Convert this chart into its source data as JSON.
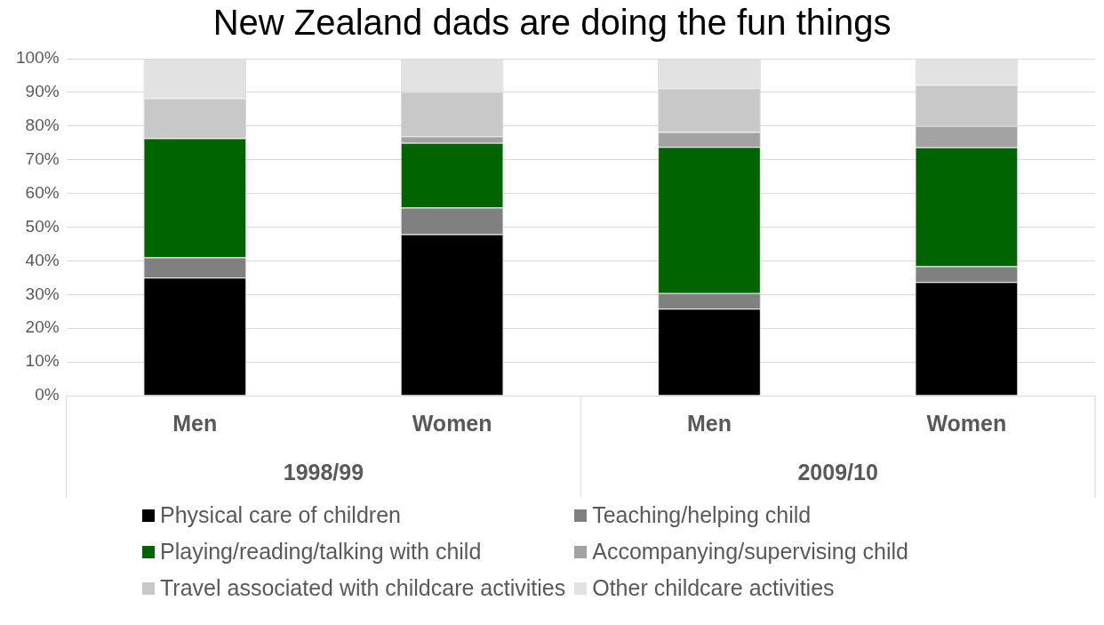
{
  "chart_data": {
    "type": "bar",
    "title": "New Zealand dads are doing the fun things",
    "stacked": true,
    "categories": [
      "Men",
      "Women",
      "Men",
      "Women"
    ],
    "annotations": [
      "1998/99",
      "2009/10"
    ],
    "series": [
      {
        "name": "Physical care of children",
        "color": "#000000",
        "values": [
          35.0,
          47.9,
          25.8,
          33.7
        ]
      },
      {
        "name": "Teaching/helping child",
        "color": "#808080",
        "values": [
          6.0,
          7.9,
          4.6,
          4.7
        ]
      },
      {
        "name": "Playing/reading/talking with child",
        "color": "#006400",
        "values": [
          35.4,
          19.2,
          43.4,
          35.3
        ]
      },
      {
        "name": "Accompanying/supervising child",
        "color": "#a3a3a3",
        "values": [
          0,
          2.0,
          4.4,
          6.3
        ]
      },
      {
        "name": "Travel associated with childcare activities",
        "color": "#c8c8c8",
        "values": [
          11.8,
          13.2,
          13.0,
          12.2
        ]
      },
      {
        "name": "Other childcare activities",
        "color": "#e2e2e2",
        "values": [
          11.8,
          9.8,
          8.8,
          7.8
        ]
      }
    ],
    "ylim": [
      0,
      100
    ],
    "yticks": [
      {
        "value": 0,
        "label": "0%"
      },
      {
        "value": 10,
        "label": "10%"
      },
      {
        "value": 20,
        "label": "20%"
      },
      {
        "value": 30,
        "label": "30%"
      },
      {
        "value": 40,
        "label": "40%"
      },
      {
        "value": 50,
        "label": "50%"
      },
      {
        "value": 60,
        "label": "60%"
      },
      {
        "value": 70,
        "label": "70%"
      },
      {
        "value": 80,
        "label": "80%"
      },
      {
        "value": 90,
        "label": "90%"
      },
      {
        "value": 100,
        "label": "100%"
      }
    ],
    "grid": "y",
    "legend": "bottom"
  }
}
